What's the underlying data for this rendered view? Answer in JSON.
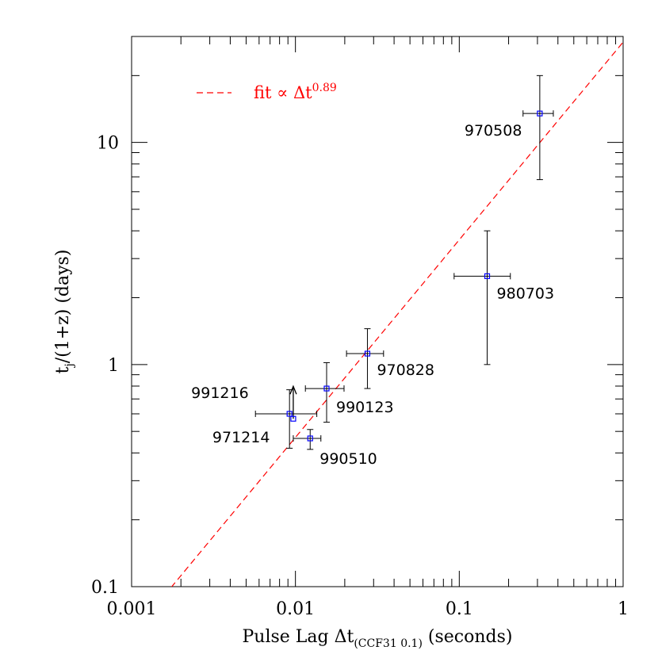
{
  "chart_data": {
    "type": "scatter",
    "x_scale": "log",
    "y_scale": "log",
    "xlim": [
      0.001,
      1
    ],
    "ylim": [
      0.1,
      30
    ],
    "xlabel": "Pulse Lag Δt",
    "xlabel_sub": "(CCF31 0.1)",
    "xlabel_tail": " (seconds)",
    "ylabel": "t",
    "ylabel_sub": "j",
    "ylabel_tail": "/(1+z)  (days)",
    "x_tick_labels": [
      {
        "value": 0.001,
        "label": "0.001"
      },
      {
        "value": 0.01,
        "label": "0.01"
      },
      {
        "value": 0.1,
        "label": "0.1"
      },
      {
        "value": 1,
        "label": "1"
      }
    ],
    "y_tick_labels": [
      {
        "value": 0.1,
        "label": "0.1"
      },
      {
        "value": 1,
        "label": "1"
      },
      {
        "value": 10,
        "label": "10"
      }
    ],
    "legend": {
      "position": "top-left",
      "text": "fit ∝ Δt",
      "superscript": "0.89"
    },
    "fit": {
      "amplitude": 28.3,
      "exponent": 0.89,
      "color": "#ff0000"
    },
    "point_color": "#0000ff",
    "points": [
      {
        "name": "970508",
        "x": 0.31,
        "y": 13.5,
        "xerr": [
          0.245,
          0.375
        ],
        "yerr": [
          6.8,
          20.0
        ],
        "lower_limit": false
      },
      {
        "name": "980703",
        "x": 0.148,
        "y": 2.5,
        "xerr": [
          0.093,
          0.205
        ],
        "yerr": [
          1.0,
          4.0
        ],
        "lower_limit": false
      },
      {
        "name": "970828",
        "x": 0.0275,
        "y": 1.12,
        "xerr": [
          0.0205,
          0.0345
        ],
        "yerr": [
          0.78,
          1.45
        ],
        "lower_limit": false
      },
      {
        "name": "990123",
        "x": 0.0155,
        "y": 0.78,
        "xerr": [
          0.0115,
          0.0198
        ],
        "yerr": [
          0.55,
          1.02
        ],
        "lower_limit": false
      },
      {
        "name": "991216",
        "x": 0.0092,
        "y": 0.6,
        "xerr": [
          0.0057,
          0.0135
        ],
        "yerr": [
          0.42,
          0.77
        ],
        "lower_limit": false
      },
      {
        "name": "971214",
        "x": 0.0097,
        "y": 0.57,
        "xerr": null,
        "yerr": null,
        "lower_limit": true
      },
      {
        "name": "990510",
        "x": 0.0123,
        "y": 0.465,
        "xerr": [
          0.0097,
          0.0143
        ],
        "yerr": [
          0.415,
          0.51
        ],
        "lower_limit": false
      }
    ]
  }
}
